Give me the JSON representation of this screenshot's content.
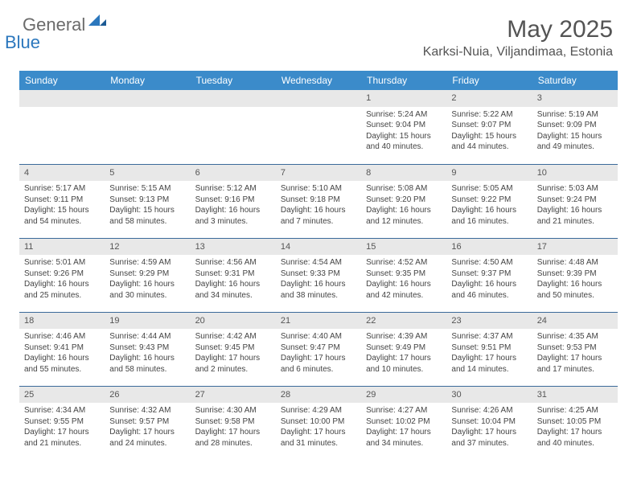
{
  "brand": {
    "general": "General",
    "blue": "Blue"
  },
  "header": {
    "month_title": "May 2025",
    "location": "Karksi-Nuia, Viljandimaa, Estonia"
  },
  "colors": {
    "header_bg": "#3b8bca",
    "header_text": "#ffffff",
    "daynum_bg": "#e8e8e8",
    "row_border": "#3b6a9a",
    "brand_blue": "#2b77bd",
    "brand_gray": "#6b6b6b"
  },
  "weekdays": [
    "Sunday",
    "Monday",
    "Tuesday",
    "Wednesday",
    "Thursday",
    "Friday",
    "Saturday"
  ],
  "weeks": [
    [
      null,
      null,
      null,
      null,
      {
        "n": "1",
        "sr": "Sunrise: 5:24 AM",
        "ss": "Sunset: 9:04 PM",
        "dl": "Daylight: 15 hours and 40 minutes."
      },
      {
        "n": "2",
        "sr": "Sunrise: 5:22 AM",
        "ss": "Sunset: 9:07 PM",
        "dl": "Daylight: 15 hours and 44 minutes."
      },
      {
        "n": "3",
        "sr": "Sunrise: 5:19 AM",
        "ss": "Sunset: 9:09 PM",
        "dl": "Daylight: 15 hours and 49 minutes."
      }
    ],
    [
      {
        "n": "4",
        "sr": "Sunrise: 5:17 AM",
        "ss": "Sunset: 9:11 PM",
        "dl": "Daylight: 15 hours and 54 minutes."
      },
      {
        "n": "5",
        "sr": "Sunrise: 5:15 AM",
        "ss": "Sunset: 9:13 PM",
        "dl": "Daylight: 15 hours and 58 minutes."
      },
      {
        "n": "6",
        "sr": "Sunrise: 5:12 AM",
        "ss": "Sunset: 9:16 PM",
        "dl": "Daylight: 16 hours and 3 minutes."
      },
      {
        "n": "7",
        "sr": "Sunrise: 5:10 AM",
        "ss": "Sunset: 9:18 PM",
        "dl": "Daylight: 16 hours and 7 minutes."
      },
      {
        "n": "8",
        "sr": "Sunrise: 5:08 AM",
        "ss": "Sunset: 9:20 PM",
        "dl": "Daylight: 16 hours and 12 minutes."
      },
      {
        "n": "9",
        "sr": "Sunrise: 5:05 AM",
        "ss": "Sunset: 9:22 PM",
        "dl": "Daylight: 16 hours and 16 minutes."
      },
      {
        "n": "10",
        "sr": "Sunrise: 5:03 AM",
        "ss": "Sunset: 9:24 PM",
        "dl": "Daylight: 16 hours and 21 minutes."
      }
    ],
    [
      {
        "n": "11",
        "sr": "Sunrise: 5:01 AM",
        "ss": "Sunset: 9:26 PM",
        "dl": "Daylight: 16 hours and 25 minutes."
      },
      {
        "n": "12",
        "sr": "Sunrise: 4:59 AM",
        "ss": "Sunset: 9:29 PM",
        "dl": "Daylight: 16 hours and 30 minutes."
      },
      {
        "n": "13",
        "sr": "Sunrise: 4:56 AM",
        "ss": "Sunset: 9:31 PM",
        "dl": "Daylight: 16 hours and 34 minutes."
      },
      {
        "n": "14",
        "sr": "Sunrise: 4:54 AM",
        "ss": "Sunset: 9:33 PM",
        "dl": "Daylight: 16 hours and 38 minutes."
      },
      {
        "n": "15",
        "sr": "Sunrise: 4:52 AM",
        "ss": "Sunset: 9:35 PM",
        "dl": "Daylight: 16 hours and 42 minutes."
      },
      {
        "n": "16",
        "sr": "Sunrise: 4:50 AM",
        "ss": "Sunset: 9:37 PM",
        "dl": "Daylight: 16 hours and 46 minutes."
      },
      {
        "n": "17",
        "sr": "Sunrise: 4:48 AM",
        "ss": "Sunset: 9:39 PM",
        "dl": "Daylight: 16 hours and 50 minutes."
      }
    ],
    [
      {
        "n": "18",
        "sr": "Sunrise: 4:46 AM",
        "ss": "Sunset: 9:41 PM",
        "dl": "Daylight: 16 hours and 55 minutes."
      },
      {
        "n": "19",
        "sr": "Sunrise: 4:44 AM",
        "ss": "Sunset: 9:43 PM",
        "dl": "Daylight: 16 hours and 58 minutes."
      },
      {
        "n": "20",
        "sr": "Sunrise: 4:42 AM",
        "ss": "Sunset: 9:45 PM",
        "dl": "Daylight: 17 hours and 2 minutes."
      },
      {
        "n": "21",
        "sr": "Sunrise: 4:40 AM",
        "ss": "Sunset: 9:47 PM",
        "dl": "Daylight: 17 hours and 6 minutes."
      },
      {
        "n": "22",
        "sr": "Sunrise: 4:39 AM",
        "ss": "Sunset: 9:49 PM",
        "dl": "Daylight: 17 hours and 10 minutes."
      },
      {
        "n": "23",
        "sr": "Sunrise: 4:37 AM",
        "ss": "Sunset: 9:51 PM",
        "dl": "Daylight: 17 hours and 14 minutes."
      },
      {
        "n": "24",
        "sr": "Sunrise: 4:35 AM",
        "ss": "Sunset: 9:53 PM",
        "dl": "Daylight: 17 hours and 17 minutes."
      }
    ],
    [
      {
        "n": "25",
        "sr": "Sunrise: 4:34 AM",
        "ss": "Sunset: 9:55 PM",
        "dl": "Daylight: 17 hours and 21 minutes."
      },
      {
        "n": "26",
        "sr": "Sunrise: 4:32 AM",
        "ss": "Sunset: 9:57 PM",
        "dl": "Daylight: 17 hours and 24 minutes."
      },
      {
        "n": "27",
        "sr": "Sunrise: 4:30 AM",
        "ss": "Sunset: 9:58 PM",
        "dl": "Daylight: 17 hours and 28 minutes."
      },
      {
        "n": "28",
        "sr": "Sunrise: 4:29 AM",
        "ss": "Sunset: 10:00 PM",
        "dl": "Daylight: 17 hours and 31 minutes."
      },
      {
        "n": "29",
        "sr": "Sunrise: 4:27 AM",
        "ss": "Sunset: 10:02 PM",
        "dl": "Daylight: 17 hours and 34 minutes."
      },
      {
        "n": "30",
        "sr": "Sunrise: 4:26 AM",
        "ss": "Sunset: 10:04 PM",
        "dl": "Daylight: 17 hours and 37 minutes."
      },
      {
        "n": "31",
        "sr": "Sunrise: 4:25 AM",
        "ss": "Sunset: 10:05 PM",
        "dl": "Daylight: 17 hours and 40 minutes."
      }
    ]
  ]
}
